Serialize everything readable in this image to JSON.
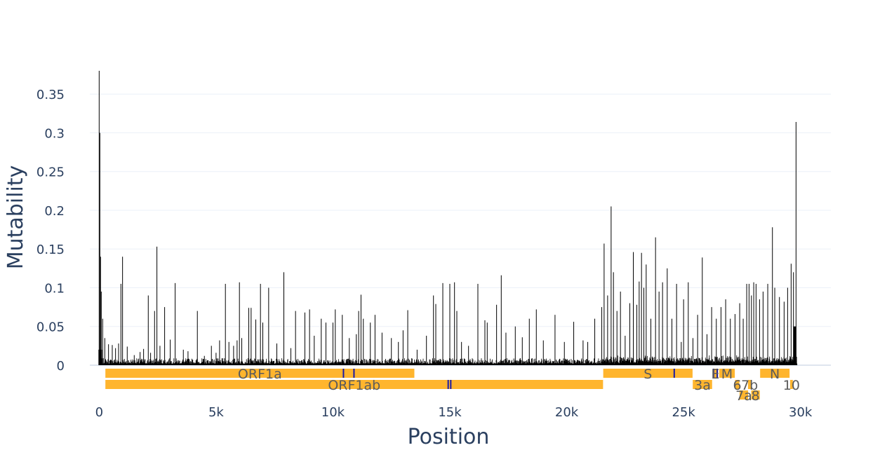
{
  "chart_data": {
    "type": "bar",
    "xlabel": "Position",
    "ylabel": "Mutability",
    "xlim": [
      -400,
      31300
    ],
    "ylim": [
      0,
      0.39
    ],
    "grid": true,
    "x_ticks": [
      {
        "value": 0,
        "label": "0"
      },
      {
        "value": 5000,
        "label": "5k"
      },
      {
        "value": 10000,
        "label": "10k"
      },
      {
        "value": 15000,
        "label": "15k"
      },
      {
        "value": 20000,
        "label": "20k"
      },
      {
        "value": 25000,
        "label": "25k"
      },
      {
        "value": 30000,
        "label": "30k"
      }
    ],
    "y_ticks": [
      {
        "value": 0,
        "label": "0"
      },
      {
        "value": 0.05,
        "label": "0.05"
      },
      {
        "value": 0.1,
        "label": "0.1"
      },
      {
        "value": 0.15,
        "label": "0.15"
      },
      {
        "value": 0.2,
        "label": "0.2"
      },
      {
        "value": 0.25,
        "label": "0.25"
      },
      {
        "value": 0.3,
        "label": "0.3"
      },
      {
        "value": 0.35,
        "label": "0.35"
      }
    ],
    "series": [
      {
        "color": "#000000",
        "peaks": [
          [
            0,
            0.38
          ],
          [
            30,
            0.3
          ],
          [
            60,
            0.14
          ],
          [
            90,
            0.095
          ],
          [
            150,
            0.06
          ],
          [
            240,
            0.035
          ],
          [
            400,
            0.027
          ],
          [
            560,
            0.026
          ],
          [
            700,
            0.022
          ],
          [
            830,
            0.028
          ],
          [
            930,
            0.105
          ],
          [
            1000,
            0.14
          ],
          [
            1200,
            0.024
          ],
          [
            1500,
            0.013
          ],
          [
            1750,
            0.017
          ],
          [
            1900,
            0.021
          ],
          [
            2100,
            0.09
          ],
          [
            2200,
            0.016
          ],
          [
            2370,
            0.07
          ],
          [
            2470,
            0.153
          ],
          [
            2600,
            0.025
          ],
          [
            2800,
            0.075
          ],
          [
            3040,
            0.033
          ],
          [
            3250,
            0.106
          ],
          [
            3600,
            0.02
          ],
          [
            3800,
            0.018
          ],
          [
            4200,
            0.07
          ],
          [
            4500,
            0.012
          ],
          [
            4800,
            0.025
          ],
          [
            5000,
            0.016
          ],
          [
            5150,
            0.032
          ],
          [
            5400,
            0.105
          ],
          [
            5550,
            0.03
          ],
          [
            5750,
            0.025
          ],
          [
            5900,
            0.032
          ],
          [
            6000,
            0.107
          ],
          [
            6100,
            0.035
          ],
          [
            6400,
            0.074
          ],
          [
            6500,
            0.074
          ],
          [
            6700,
            0.059
          ],
          [
            6900,
            0.105
          ],
          [
            7000,
            0.055
          ],
          [
            7250,
            0.1
          ],
          [
            7600,
            0.028
          ],
          [
            7900,
            0.12
          ],
          [
            8200,
            0.022
          ],
          [
            8400,
            0.07
          ],
          [
            8800,
            0.068
          ],
          [
            9000,
            0.072
          ],
          [
            9200,
            0.038
          ],
          [
            9500,
            0.06
          ],
          [
            9700,
            0.055
          ],
          [
            10000,
            0.055
          ],
          [
            10100,
            0.072
          ],
          [
            10400,
            0.065
          ],
          [
            10700,
            0.035
          ],
          [
            11000,
            0.04
          ],
          [
            11100,
            0.07
          ],
          [
            11200,
            0.091
          ],
          [
            11300,
            0.06
          ],
          [
            11600,
            0.055
          ],
          [
            11800,
            0.065
          ],
          [
            12100,
            0.042
          ],
          [
            12500,
            0.035
          ],
          [
            12800,
            0.03
          ],
          [
            13000,
            0.045
          ],
          [
            13200,
            0.071
          ],
          [
            13600,
            0.02
          ],
          [
            14000,
            0.038
          ],
          [
            14300,
            0.09
          ],
          [
            14400,
            0.079
          ],
          [
            14700,
            0.106
          ],
          [
            15000,
            0.105
          ],
          [
            15200,
            0.107
          ],
          [
            15300,
            0.07
          ],
          [
            15500,
            0.03
          ],
          [
            15800,
            0.025
          ],
          [
            16200,
            0.105
          ],
          [
            16500,
            0.058
          ],
          [
            16600,
            0.055
          ],
          [
            17000,
            0.078
          ],
          [
            17200,
            0.116
          ],
          [
            17400,
            0.042
          ],
          [
            17800,
            0.05
          ],
          [
            18100,
            0.036
          ],
          [
            18400,
            0.06
          ],
          [
            18700,
            0.072
          ],
          [
            19000,
            0.032
          ],
          [
            19500,
            0.065
          ],
          [
            19900,
            0.03
          ],
          [
            20300,
            0.056
          ],
          [
            20700,
            0.032
          ],
          [
            20900,
            0.03
          ],
          [
            21200,
            0.06
          ],
          [
            21500,
            0.075
          ],
          [
            21600,
            0.157
          ],
          [
            21750,
            0.09
          ],
          [
            21900,
            0.205
          ],
          [
            22000,
            0.12
          ],
          [
            22150,
            0.07
          ],
          [
            22300,
            0.095
          ],
          [
            22500,
            0.038
          ],
          [
            22700,
            0.08
          ],
          [
            22850,
            0.146
          ],
          [
            23000,
            0.078
          ],
          [
            23100,
            0.108
          ],
          [
            23200,
            0.145
          ],
          [
            23300,
            0.1
          ],
          [
            23400,
            0.13
          ],
          [
            23600,
            0.06
          ],
          [
            23800,
            0.165
          ],
          [
            23950,
            0.095
          ],
          [
            24100,
            0.107
          ],
          [
            24300,
            0.125
          ],
          [
            24500,
            0.06
          ],
          [
            24700,
            0.105
          ],
          [
            24900,
            0.03
          ],
          [
            25000,
            0.085
          ],
          [
            25200,
            0.107
          ],
          [
            25400,
            0.035
          ],
          [
            25600,
            0.065
          ],
          [
            25800,
            0.139
          ],
          [
            26000,
            0.04
          ],
          [
            26200,
            0.075
          ],
          [
            26400,
            0.06
          ],
          [
            26600,
            0.075
          ],
          [
            26800,
            0.085
          ],
          [
            27000,
            0.06
          ],
          [
            27200,
            0.066
          ],
          [
            27400,
            0.08
          ],
          [
            27550,
            0.06
          ],
          [
            27700,
            0.105
          ],
          [
            27800,
            0.105
          ],
          [
            27900,
            0.09
          ],
          [
            28000,
            0.107
          ],
          [
            28100,
            0.105
          ],
          [
            28250,
            0.085
          ],
          [
            28400,
            0.095
          ],
          [
            28600,
            0.105
          ],
          [
            28800,
            0.178
          ],
          [
            28900,
            0.1
          ],
          [
            29100,
            0.088
          ],
          [
            29300,
            0.082
          ],
          [
            29450,
            0.1
          ],
          [
            29600,
            0.131
          ],
          [
            29700,
            0.12
          ],
          [
            29810,
            0.314
          ]
        ]
      }
    ],
    "genes": [
      {
        "name": "ORF1a",
        "start": 266,
        "end": 13483,
        "row": 0
      },
      {
        "name": "ORF1ab",
        "start": 266,
        "end": 21555,
        "row": 1
      },
      {
        "name": "S",
        "start": 21563,
        "end": 25384,
        "row": 0
      },
      {
        "name": "3a",
        "start": 25393,
        "end": 26220,
        "row": 1
      },
      {
        "name": "E",
        "start": 26245,
        "end": 26472,
        "row": 0
      },
      {
        "name": "M",
        "start": 26523,
        "end": 27191,
        "row": 0
      },
      {
        "name": "6",
        "start": 27202,
        "end": 27387,
        "row": 1
      },
      {
        "name": "7a",
        "start": 27394,
        "end": 27759,
        "row": 2
      },
      {
        "name": "7b",
        "start": 27756,
        "end": 27887,
        "row": 1
      },
      {
        "name": "8",
        "start": 27894,
        "end": 28259,
        "row": 2
      },
      {
        "name": "N",
        "start": 28274,
        "end": 29533,
        "row": 0
      },
      {
        "name": "10",
        "start": 29558,
        "end": 29674,
        "row": 1
      }
    ],
    "gene_marks": [
      {
        "row": 0,
        "x": 10450
      },
      {
        "row": 0,
        "x": 10900
      },
      {
        "row": 0,
        "x": 24600
      },
      {
        "row": 0,
        "x": 26280
      },
      {
        "row": 0,
        "x": 26440
      },
      {
        "row": 1,
        "x": 14930
      },
      {
        "row": 1,
        "x": 15040
      }
    ],
    "colors": {
      "bars": "#000000",
      "gene": "#ffb52e",
      "gene_mark": "#1a1aa6",
      "grid": "#ebf0f8",
      "zero_line": "#dfe5ef",
      "text": "#2a3f5f",
      "gene_text": "#5b5b5b"
    }
  }
}
